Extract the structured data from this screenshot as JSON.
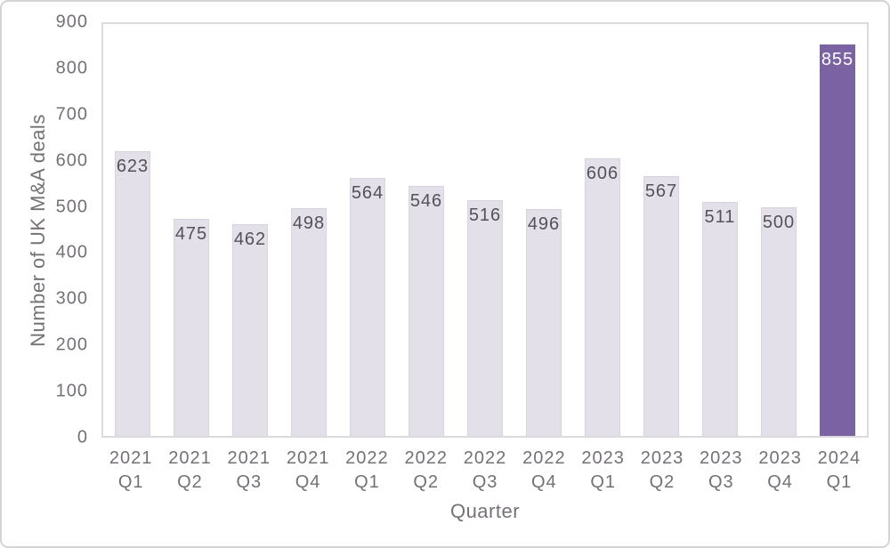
{
  "chart_data": {
    "type": "bar",
    "title": "",
    "xlabel": "Quarter",
    "ylabel": "Number of UK M&A deals",
    "categories": [
      {
        "year": "2021",
        "quarter": "Q1"
      },
      {
        "year": "2021",
        "quarter": "Q2"
      },
      {
        "year": "2021",
        "quarter": "Q3"
      },
      {
        "year": "2021",
        "quarter": "Q4"
      },
      {
        "year": "2022",
        "quarter": "Q1"
      },
      {
        "year": "2022",
        "quarter": "Q2"
      },
      {
        "year": "2022",
        "quarter": "Q3"
      },
      {
        "year": "2022",
        "quarter": "Q4"
      },
      {
        "year": "2023",
        "quarter": "Q1"
      },
      {
        "year": "2023",
        "quarter": "Q2"
      },
      {
        "year": "2023",
        "quarter": "Q3"
      },
      {
        "year": "2023",
        "quarter": "Q4"
      },
      {
        "year": "2024",
        "quarter": "Q1"
      }
    ],
    "values": [
      623,
      475,
      462,
      498,
      564,
      546,
      516,
      496,
      606,
      567,
      511,
      500,
      855
    ],
    "highlight_index": 12,
    "ylim": [
      0,
      900
    ],
    "yticks": [
      0,
      100,
      200,
      300,
      400,
      500,
      600,
      700,
      800,
      900
    ],
    "grid": false,
    "legend": false,
    "colors": {
      "bar_fill": "#e3e0ea",
      "bar_border": "#d7d3e0",
      "highlight_fill": "#7b62a3",
      "label_color": "#565058",
      "highlight_label_color": "#ffffff",
      "axis_text": "#757077",
      "plot_border": "#dcdade"
    }
  }
}
